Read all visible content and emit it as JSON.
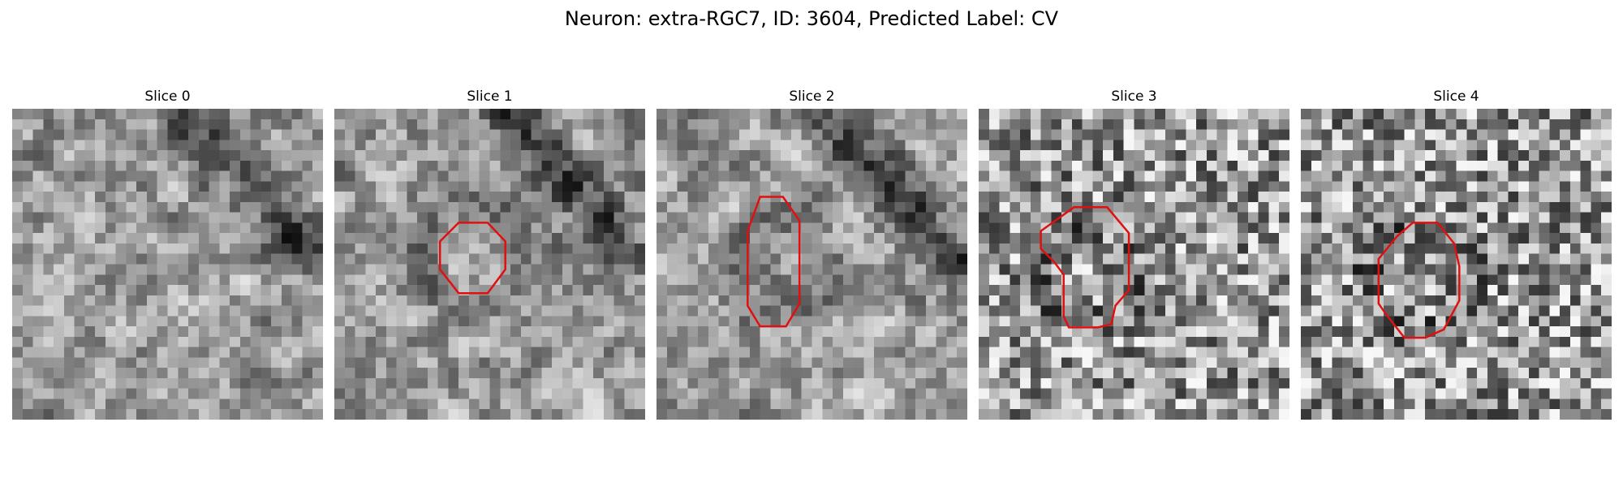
{
  "figure": {
    "title": "Neuron: extra-RGC7, ID: 3604, Predicted Label: CV"
  },
  "colors": {
    "roi_outline": "#e01010",
    "background": "#ffffff"
  },
  "grid": {
    "rows": 30,
    "cols": 30
  },
  "panels": [
    {
      "title": "Slice 0",
      "seed": 11,
      "dark_band": true,
      "roi": []
    },
    {
      "title": "Slice 1",
      "seed": 23,
      "dark_band": true,
      "roi": [
        [
          12,
          11
        ],
        [
          14.8,
          11
        ],
        [
          16.5,
          12.8
        ],
        [
          16.5,
          15.5
        ],
        [
          14.8,
          17.8
        ],
        [
          12,
          17.8
        ],
        [
          10.2,
          15.5
        ],
        [
          10.2,
          12.8
        ]
      ]
    },
    {
      "title": "Slice 2",
      "seed": 37,
      "dark_band": true,
      "roi": [
        [
          10,
          8.5
        ],
        [
          12.2,
          8.5
        ],
        [
          13.8,
          10.8
        ],
        [
          13.8,
          18.8
        ],
        [
          12.5,
          21
        ],
        [
          10,
          21
        ],
        [
          8.8,
          19
        ],
        [
          8.8,
          11.8
        ]
      ]
    },
    {
      "title": "Slice 3",
      "seed": 51,
      "dark_band": false,
      "roi": [
        [
          9.2,
          9.5
        ],
        [
          12.4,
          9.5
        ],
        [
          14.5,
          12
        ],
        [
          14.5,
          17.5
        ],
        [
          13.2,
          19
        ],
        [
          12.8,
          20.8
        ],
        [
          11.5,
          21.1
        ],
        [
          8.7,
          21.1
        ],
        [
          8.2,
          20
        ],
        [
          8.2,
          16
        ],
        [
          7.3,
          14.8
        ],
        [
          6,
          13.5
        ],
        [
          6,
          11.8
        ]
      ]
    },
    {
      "title": "Slice 4",
      "seed": 67,
      "dark_band": false,
      "roi": [
        [
          10.8,
          11
        ],
        [
          13.2,
          11
        ],
        [
          14.8,
          13
        ],
        [
          15.3,
          15.2
        ],
        [
          15.3,
          18.5
        ],
        [
          13.8,
          21.3
        ],
        [
          12,
          22.1
        ],
        [
          10,
          22.1
        ],
        [
          8.2,
          19.8
        ],
        [
          7.5,
          18.8
        ],
        [
          7.5,
          14.5
        ],
        [
          9.3,
          12.3
        ]
      ]
    }
  ]
}
